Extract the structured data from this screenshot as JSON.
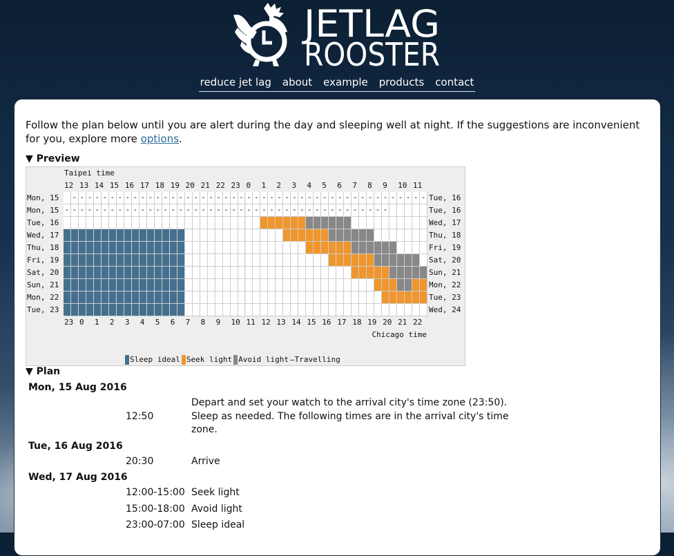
{
  "header": {
    "logo_line1": "JETLAG",
    "logo_line2": "ROOSTER",
    "nav": [
      "reduce jet lag",
      "about",
      "example",
      "products",
      "contact"
    ]
  },
  "intro": {
    "text": "Follow the plan below until you are alert during the day and sleeping well at night. If the suggestions are inconvenient for you, explore more ",
    "link": "options",
    "end": "."
  },
  "preview": {
    "heading": "▼ Preview",
    "top_zone": "Taipei time",
    "top_hours": [
      12,
      13,
      14,
      15,
      16,
      17,
      18,
      19,
      20,
      21,
      22,
      23,
      0,
      1,
      2,
      3,
      4,
      5,
      6,
      7,
      8,
      9,
      10,
      11
    ],
    "bottom_hours": [
      23,
      0,
      1,
      2,
      3,
      4,
      5,
      6,
      7,
      8,
      9,
      10,
      11,
      12,
      13,
      14,
      15,
      16,
      17,
      18,
      19,
      20,
      21,
      22
    ],
    "bottom_zone": "Chicago time",
    "rows": [
      {
        "left": "Mon, 15",
        "right": "Tue, 16",
        "cells": ".-----------------------------------------------"
      },
      {
        "left": "Mon, 15",
        "right": "Tue, 16",
        "cells": "-------------------------------------------....."
      },
      {
        "left": "Tue, 16",
        "right": "Wed, 17",
        "cells": "..........................LLLLLLAAAAAA.........."
      },
      {
        "left": "Wed, 17",
        "right": "Thu, 18",
        "cells": "SSSSSSSSSSSSSSSS.............LLLLLLAAAAAA......."
      },
      {
        "left": "Thu, 18",
        "right": "Fri, 19",
        "cells": "SSSSSSSSSSSSSSSS................LLLLLLAAAAAA...."
      },
      {
        "left": "Fri, 19",
        "right": "Sat, 20",
        "cells": "SSSSSSSSSSSSSSSS...................LLLLLLAAAAAA."
      },
      {
        "left": "Sat, 20",
        "right": "Sun, 21",
        "cells": "SSSSSSSSSSSSSSSS......................LLLLLAAAAA"
      },
      {
        "left": "Sun, 21",
        "right": "Mon, 22",
        "cells": "SSSSSSSSSSSSSSSS.........................LLLAALL"
      },
      {
        "left": "Mon, 22",
        "right": "Tue, 23",
        "cells": "SSSSSSSSSSSSSSSS..........................LLLLLL"
      },
      {
        "left": "Tue, 23",
        "right": "Wed, 24",
        "cells": "SSSSSSSSSSSSSSSS................................"
      }
    ],
    "legend": [
      {
        "key": "S",
        "label": "Sleep ideal",
        "color": "#44708f"
      },
      {
        "key": "L",
        "label": "Seek light",
        "color": "#f0962c"
      },
      {
        "key": "A",
        "label": "Avoid light",
        "color": "#888888"
      }
    ],
    "travel_label": "—Travelling"
  },
  "plan": {
    "heading": "▼ Plan",
    "days": [
      {
        "date": "Mon, 15 Aug 2016",
        "entries": [
          {
            "time": "12:50",
            "text": "Depart and set your watch to the arrival city's time zone (23:50). Sleep as needed. The following times are in the arrival city's time zone."
          }
        ]
      },
      {
        "date": "Tue, 16 Aug 2016",
        "entries": [
          {
            "time": "20:30",
            "text": "Arrive"
          }
        ]
      },
      {
        "date": "Wed, 17 Aug 2016",
        "entries": [
          {
            "time": "12:00-15:00",
            "text": "Seek light"
          },
          {
            "time": "15:00-18:00",
            "text": "Avoid light"
          },
          {
            "time": "23:00-07:00",
            "text": "Sleep ideal"
          }
        ]
      }
    ]
  }
}
